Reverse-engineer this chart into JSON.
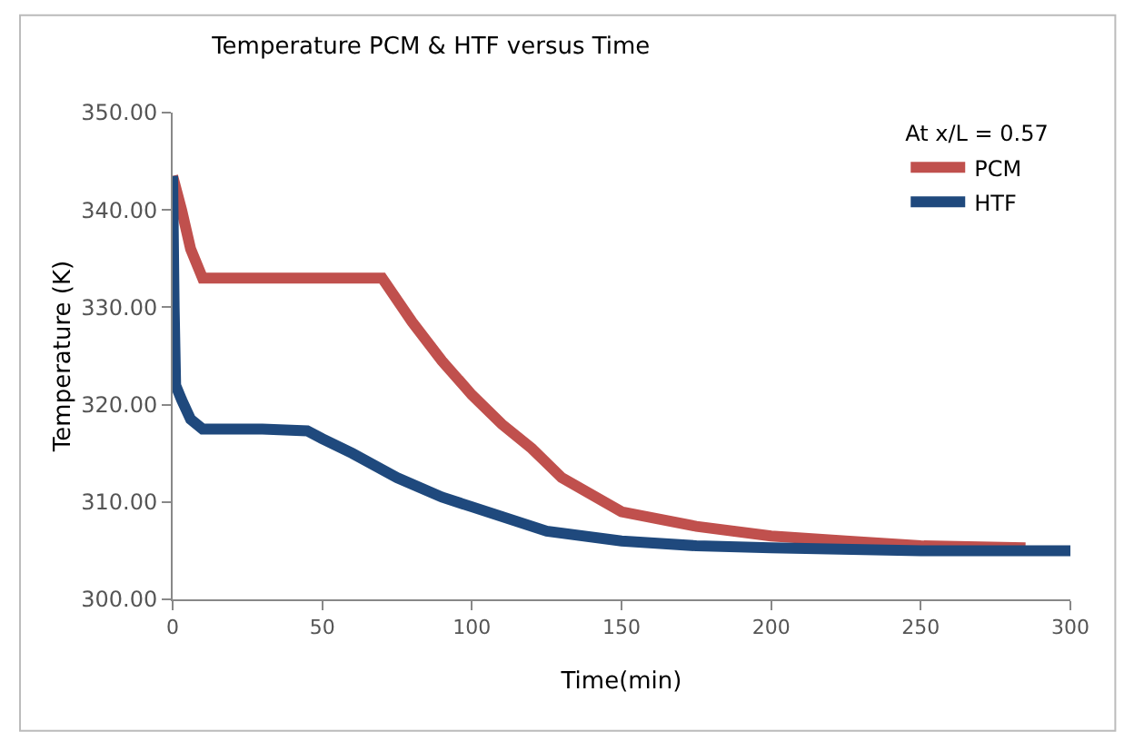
{
  "chart_data": {
    "type": "line",
    "title": "Temperature PCM & HTF versus Time",
    "xlabel": "Time(min)",
    "ylabel": "Temperature (K)",
    "legend_title": "At x/L = 0.57",
    "xlim": [
      0,
      300
    ],
    "xticks": [
      0,
      50,
      100,
      150,
      200,
      250,
      300
    ],
    "ylim": [
      300,
      350
    ],
    "yticks": [
      {
        "value": 300,
        "label": "300.00"
      },
      {
        "value": 310,
        "label": "310.00"
      },
      {
        "value": 320,
        "label": "320.00"
      },
      {
        "value": 330,
        "label": "330.00"
      },
      {
        "value": 340,
        "label": "340.00"
      },
      {
        "value": 350,
        "label": "350.00"
      }
    ],
    "grid": false,
    "legend": "top right",
    "marker": "none",
    "line_style": "solid",
    "series": [
      {
        "name": "PCM",
        "color": "#c0504d",
        "x": [
          0,
          3,
          6,
          10,
          20,
          40,
          60,
          70,
          80,
          90,
          100,
          110,
          120,
          130,
          150,
          175,
          200,
          225,
          250,
          285
        ],
        "values": [
          343.5,
          340,
          336,
          333,
          333,
          333,
          333,
          333,
          328.5,
          324.5,
          321,
          318,
          315.5,
          312.5,
          309,
          307.5,
          306.5,
          306,
          305.5,
          305.3
        ]
      },
      {
        "name": "HTF",
        "color": "#1f497d",
        "x": [
          0,
          0.5,
          1,
          3,
          6,
          10,
          20,
          30,
          45,
          50,
          60,
          75,
          90,
          100,
          125,
          150,
          175,
          200,
          250,
          300
        ],
        "values": [
          343.5,
          330,
          322,
          320.5,
          318.5,
          317.5,
          317.5,
          317.5,
          317.3,
          316.5,
          315,
          312.5,
          310.5,
          309.5,
          307,
          306,
          305.5,
          305.3,
          305,
          305
        ]
      }
    ]
  }
}
